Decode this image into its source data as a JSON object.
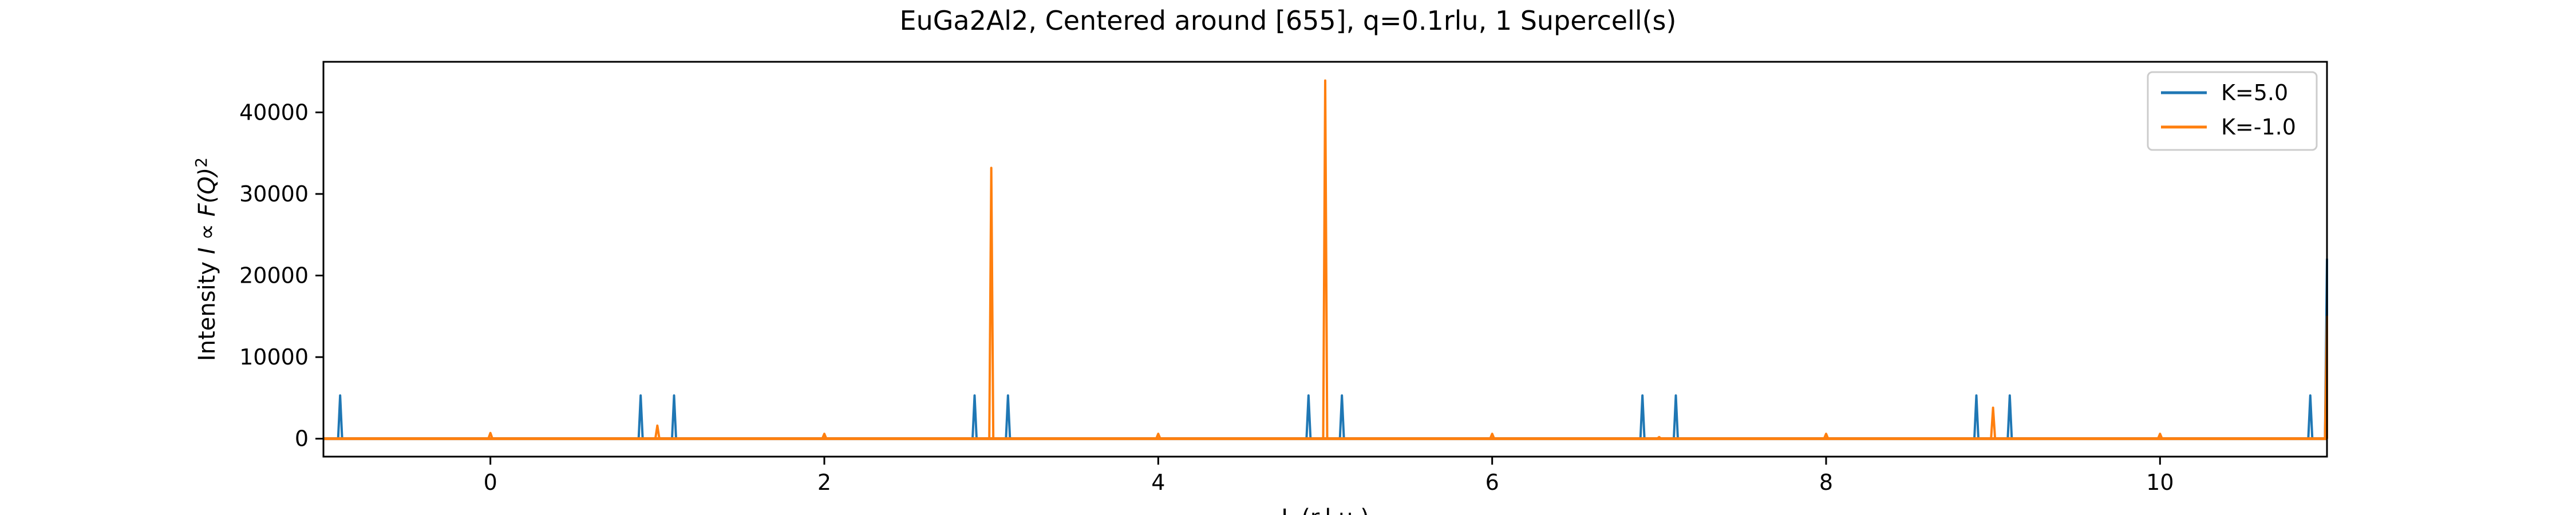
{
  "chart_data": {
    "type": "line",
    "title": "EuGa2Al2, Centered around [655], q=0.1rlu, 1 Supercell(s)",
    "xlabel": "L (r.l.u.)",
    "ylabel_prefix": "Intensity ",
    "ylabel_math": "I ∝ F(Q)",
    "ylabel_sup": "2",
    "xlim": [
      -1.0,
      11.0
    ],
    "ylim": [
      -2200,
      46200
    ],
    "xticks": [
      0,
      2,
      4,
      6,
      8,
      10
    ],
    "yticks": [
      0,
      10000,
      20000,
      30000,
      40000
    ],
    "legend_placement": "upper-right",
    "baseline": 0,
    "series": [
      {
        "name": "K=5.0",
        "color": "#1f77b4",
        "peaks": [
          {
            "x": -0.9,
            "y": 5300
          },
          {
            "x": 0.9,
            "y": 5300
          },
          {
            "x": 1.1,
            "y": 5300
          },
          {
            "x": 2.9,
            "y": 5300
          },
          {
            "x": 3.1,
            "y": 5300
          },
          {
            "x": 4.9,
            "y": 5300
          },
          {
            "x": 5.1,
            "y": 5300
          },
          {
            "x": 6.9,
            "y": 5300
          },
          {
            "x": 7.1,
            "y": 5300
          },
          {
            "x": 8.9,
            "y": 5300
          },
          {
            "x": 9.1,
            "y": 5300
          },
          {
            "x": 10.9,
            "y": 5300
          },
          {
            "x": 11.0,
            "y": 22000
          }
        ]
      },
      {
        "name": "K=-1.0",
        "color": "#ff7f0e",
        "peaks": [
          {
            "x": 0.0,
            "y": 700
          },
          {
            "x": 1.0,
            "y": 1600
          },
          {
            "x": 2.0,
            "y": 600
          },
          {
            "x": 3.0,
            "y": 33200
          },
          {
            "x": 4.0,
            "y": 600
          },
          {
            "x": 5.0,
            "y": 43900
          },
          {
            "x": 6.0,
            "y": 600
          },
          {
            "x": 7.0,
            "y": 200
          },
          {
            "x": 8.0,
            "y": 600
          },
          {
            "x": 9.0,
            "y": 3800
          },
          {
            "x": 10.0,
            "y": 600
          },
          {
            "x": 11.0,
            "y": 15000
          }
        ]
      }
    ]
  }
}
